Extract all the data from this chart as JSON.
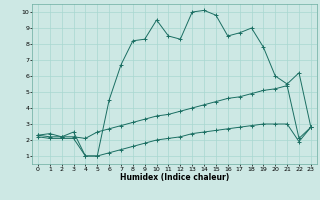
{
  "xlabel": "Humidex (Indice chaleur)",
  "ylabel": "",
  "xlim": [
    -0.5,
    23.5
  ],
  "ylim": [
    0.5,
    10.5
  ],
  "xticks": [
    0,
    1,
    2,
    3,
    4,
    5,
    6,
    7,
    8,
    9,
    10,
    11,
    12,
    13,
    14,
    15,
    16,
    17,
    18,
    19,
    20,
    21,
    22,
    23
  ],
  "yticks": [
    1,
    2,
    3,
    4,
    5,
    6,
    7,
    8,
    9,
    10
  ],
  "bg_color": "#cde8e4",
  "line_color": "#1a6e62",
  "grid_color": "#a8d8d0",
  "line1_x": [
    0,
    1,
    2,
    3,
    4,
    5,
    6,
    7,
    8,
    9,
    10,
    11,
    12,
    13,
    14,
    15,
    16,
    17,
    18,
    19,
    20,
    21,
    22,
    23
  ],
  "line1_y": [
    2.3,
    2.4,
    2.2,
    2.5,
    1.0,
    1.0,
    4.5,
    6.7,
    8.2,
    8.3,
    9.5,
    8.5,
    8.3,
    10.0,
    10.1,
    9.8,
    8.5,
    8.7,
    9.0,
    7.8,
    6.0,
    5.5,
    6.2,
    2.8
  ],
  "line2_x": [
    0,
    1,
    2,
    3,
    4,
    5,
    6,
    7,
    8,
    9,
    10,
    11,
    12,
    13,
    14,
    15,
    16,
    17,
    18,
    19,
    20,
    21,
    22,
    23
  ],
  "line2_y": [
    2.3,
    2.2,
    2.2,
    2.2,
    2.1,
    2.5,
    2.7,
    2.9,
    3.1,
    3.3,
    3.5,
    3.6,
    3.8,
    4.0,
    4.2,
    4.4,
    4.6,
    4.7,
    4.9,
    5.1,
    5.2,
    5.4,
    2.1,
    2.8
  ],
  "line3_x": [
    0,
    1,
    2,
    3,
    4,
    5,
    6,
    7,
    8,
    9,
    10,
    11,
    12,
    13,
    14,
    15,
    16,
    17,
    18,
    19,
    20,
    21,
    22,
    23
  ],
  "line3_y": [
    2.2,
    2.1,
    2.1,
    2.1,
    1.0,
    1.0,
    1.2,
    1.4,
    1.6,
    1.8,
    2.0,
    2.1,
    2.2,
    2.4,
    2.5,
    2.6,
    2.7,
    2.8,
    2.9,
    3.0,
    3.0,
    3.0,
    1.9,
    2.8
  ],
  "figsize": [
    3.2,
    2.0
  ],
  "dpi": 100
}
